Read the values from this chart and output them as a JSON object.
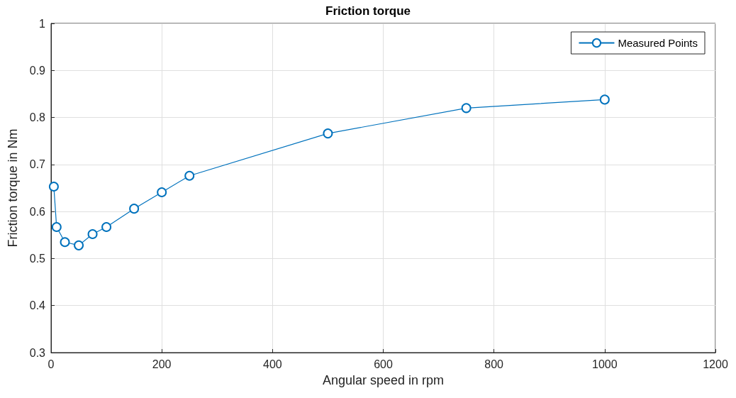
{
  "chart_data": {
    "type": "line",
    "title": "Friction torque",
    "xlabel": "Angular speed in rpm",
    "ylabel": "Friction torque in Nm",
    "x": [
      5,
      10,
      25,
      50,
      75,
      100,
      150,
      200,
      250,
      500,
      750,
      1000
    ],
    "series": [
      {
        "name": "Measured Points",
        "color": "#0072bd",
        "values": [
          0.653,
          0.567,
          0.535,
          0.528,
          0.552,
          0.567,
          0.606,
          0.641,
          0.676,
          0.766,
          0.82,
          0.838
        ]
      }
    ],
    "xlim": [
      0,
      1200
    ],
    "xticks": [
      0,
      200,
      400,
      600,
      800,
      1000,
      1200
    ],
    "ylim": [
      0.3,
      1
    ],
    "yticks": [
      0.3,
      0.4,
      0.5,
      0.6,
      0.7,
      0.8,
      0.9,
      1
    ],
    "grid": true,
    "legend": "top right",
    "marker": "circle",
    "line_style": "solid"
  }
}
